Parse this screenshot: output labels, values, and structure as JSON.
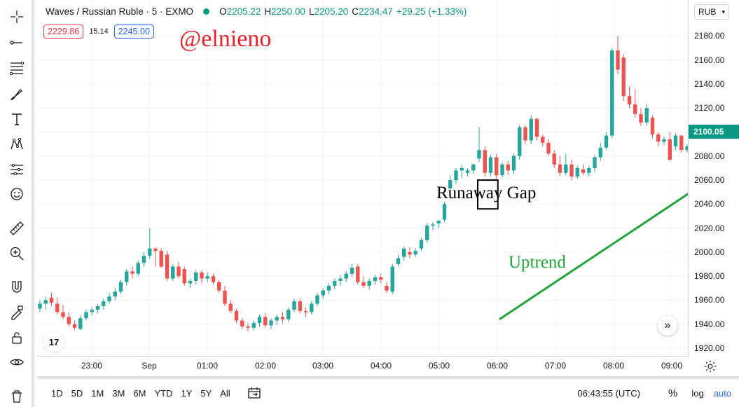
{
  "legend": {
    "symbol": "Waves / Russian Ruble · 5 · EXMO",
    "o_label": "O",
    "o_value": "2205.22",
    "h_label": "H",
    "h_value": "2250.00",
    "l_label": "L",
    "l_value": "2205.20",
    "c_label": "C",
    "c_value": "2234.47",
    "change": "+29.25 (+1.33%)"
  },
  "badges": {
    "sell": "2229.86",
    "spread": "15.14",
    "buy": "2245.00"
  },
  "watermark": "@elnieno",
  "annotations": {
    "gap_label": "Runaway Gap",
    "trend_label": "Uptrend"
  },
  "currency": "RUB",
  "last_price": "2100.05",
  "price_ticks": [
    "2180.00",
    "2160.00",
    "2140.00",
    "2120.00",
    "2100.00",
    "2080.00",
    "2060.00",
    "2040.00",
    "2020.00",
    "2000.00",
    "1980.00",
    "1960.00",
    "1940.00",
    "1920.00"
  ],
  "time_ticks": [
    "23:00",
    "Sep",
    "01:00",
    "02:00",
    "03:00",
    "04:00",
    "05:00",
    "06:00",
    "07:00",
    "08:00",
    "09:00"
  ],
  "ranges": [
    "1D",
    "5D",
    "1M",
    "3M",
    "6M",
    "YTD",
    "1Y",
    "5Y",
    "All"
  ],
  "clock": "06:43:55 (UTC)",
  "scale_pct": "%",
  "scale_log": "log",
  "scale_auto": "auto",
  "tv_logo": "17",
  "colors": {
    "up": "#26a69a",
    "down": "#ef5350",
    "trend": "#22a33a",
    "watermark": "#e8202a"
  },
  "chart_data": {
    "type": "candlestick",
    "ylim": [
      1913,
      2210
    ],
    "candles": [
      {
        "o": 1953,
        "h": 1960,
        "l": 1950,
        "c": 1957
      },
      {
        "o": 1957,
        "h": 1963,
        "l": 1952,
        "c": 1960
      },
      {
        "o": 1962,
        "h": 1966,
        "l": 1955,
        "c": 1958
      },
      {
        "o": 1957,
        "h": 1962,
        "l": 1948,
        "c": 1950
      },
      {
        "o": 1950,
        "h": 1956,
        "l": 1944,
        "c": 1946
      },
      {
        "o": 1946,
        "h": 1950,
        "l": 1938,
        "c": 1940
      },
      {
        "o": 1940,
        "h": 1943,
        "l": 1935,
        "c": 1937
      },
      {
        "o": 1936,
        "h": 1947,
        "l": 1935,
        "c": 1945
      },
      {
        "o": 1945,
        "h": 1952,
        "l": 1943,
        "c": 1950
      },
      {
        "o": 1950,
        "h": 1954,
        "l": 1947,
        "c": 1952
      },
      {
        "o": 1952,
        "h": 1957,
        "l": 1949,
        "c": 1955
      },
      {
        "o": 1955,
        "h": 1961,
        "l": 1952,
        "c": 1959
      },
      {
        "o": 1959,
        "h": 1966,
        "l": 1957,
        "c": 1963
      },
      {
        "o": 1963,
        "h": 1970,
        "l": 1960,
        "c": 1967
      },
      {
        "o": 1967,
        "h": 1977,
        "l": 1965,
        "c": 1975
      },
      {
        "o": 1975,
        "h": 1986,
        "l": 1972,
        "c": 1984
      },
      {
        "o": 1984,
        "h": 1988,
        "l": 1978,
        "c": 1982
      },
      {
        "o": 1982,
        "h": 1993,
        "l": 1980,
        "c": 1991
      },
      {
        "o": 1991,
        "h": 2000,
        "l": 1988,
        "c": 1997
      },
      {
        "o": 1997,
        "h": 2020,
        "l": 1994,
        "c": 2003
      },
      {
        "o": 2003,
        "h": 2004,
        "l": 1988,
        "c": 2001
      },
      {
        "o": 2001,
        "h": 2003,
        "l": 1987,
        "c": 1988
      },
      {
        "o": 1998,
        "h": 2001,
        "l": 1976,
        "c": 1978
      },
      {
        "o": 1978,
        "h": 1990,
        "l": 1976,
        "c": 1988
      },
      {
        "o": 1988,
        "h": 1992,
        "l": 1978,
        "c": 1980
      },
      {
        "o": 1986,
        "h": 1988,
        "l": 1972,
        "c": 1974
      },
      {
        "o": 1974,
        "h": 1978,
        "l": 1970,
        "c": 1976
      },
      {
        "o": 1976,
        "h": 1985,
        "l": 1973,
        "c": 1983
      },
      {
        "o": 1983,
        "h": 1985,
        "l": 1974,
        "c": 1978
      },
      {
        "o": 1978,
        "h": 1983,
        "l": 1975,
        "c": 1980
      },
      {
        "o": 1980,
        "h": 1982,
        "l": 1973,
        "c": 1975
      },
      {
        "o": 1975,
        "h": 1977,
        "l": 1966,
        "c": 1968
      },
      {
        "o": 1968,
        "h": 1972,
        "l": 1955,
        "c": 1957
      },
      {
        "o": 1957,
        "h": 1960,
        "l": 1949,
        "c": 1951
      },
      {
        "o": 1951,
        "h": 1953,
        "l": 1941,
        "c": 1943
      },
      {
        "o": 1943,
        "h": 1945,
        "l": 1936,
        "c": 1938
      },
      {
        "o": 1938,
        "h": 1941,
        "l": 1934,
        "c": 1937
      },
      {
        "o": 1937,
        "h": 1943,
        "l": 1935,
        "c": 1941
      },
      {
        "o": 1941,
        "h": 1948,
        "l": 1938,
        "c": 1946
      },
      {
        "o": 1946,
        "h": 1949,
        "l": 1937,
        "c": 1939
      },
      {
        "o": 1939,
        "h": 1945,
        "l": 1936,
        "c": 1943
      },
      {
        "o": 1943,
        "h": 1948,
        "l": 1939,
        "c": 1946
      },
      {
        "o": 1946,
        "h": 1950,
        "l": 1941,
        "c": 1944
      },
      {
        "o": 1944,
        "h": 1954,
        "l": 1942,
        "c": 1952
      },
      {
        "o": 1952,
        "h": 1961,
        "l": 1950,
        "c": 1959
      },
      {
        "o": 1959,
        "h": 1961,
        "l": 1949,
        "c": 1951
      },
      {
        "o": 1951,
        "h": 1954,
        "l": 1946,
        "c": 1950
      },
      {
        "o": 1950,
        "h": 1959,
        "l": 1948,
        "c": 1957
      },
      {
        "o": 1957,
        "h": 1966,
        "l": 1955,
        "c": 1964
      },
      {
        "o": 1964,
        "h": 1970,
        "l": 1961,
        "c": 1968
      },
      {
        "o": 1968,
        "h": 1974,
        "l": 1965,
        "c": 1972
      },
      {
        "o": 1972,
        "h": 1978,
        "l": 1969,
        "c": 1976
      },
      {
        "o": 1976,
        "h": 1981,
        "l": 1972,
        "c": 1978
      },
      {
        "o": 1978,
        "h": 1984,
        "l": 1975,
        "c": 1982
      },
      {
        "o": 1982,
        "h": 1990,
        "l": 1979,
        "c": 1987
      },
      {
        "o": 1988,
        "h": 1990,
        "l": 1973,
        "c": 1975
      },
      {
        "o": 1975,
        "h": 1980,
        "l": 1970,
        "c": 1972
      },
      {
        "o": 1972,
        "h": 1978,
        "l": 1969,
        "c": 1976
      },
      {
        "o": 1976,
        "h": 1981,
        "l": 1973,
        "c": 1979
      },
      {
        "o": 1979,
        "h": 1982,
        "l": 1974,
        "c": 1977
      },
      {
        "o": 1972,
        "h": 1975,
        "l": 1966,
        "c": 1968
      },
      {
        "o": 1967,
        "h": 1990,
        "l": 1965,
        "c": 1988
      },
      {
        "o": 1990,
        "h": 1998,
        "l": 1988,
        "c": 1995
      },
      {
        "o": 1996,
        "h": 2005,
        "l": 1993,
        "c": 2003
      },
      {
        "o": 2000,
        "h": 2004,
        "l": 1995,
        "c": 1998
      },
      {
        "o": 1998,
        "h": 2003,
        "l": 1996,
        "c": 2001
      },
      {
        "o": 2003,
        "h": 2012,
        "l": 2001,
        "c": 2010
      },
      {
        "o": 2010,
        "h": 2024,
        "l": 2008,
        "c": 2022
      },
      {
        "o": 2022,
        "h": 2025,
        "l": 2018,
        "c": 2023
      },
      {
        "o": 2024,
        "h": 2027,
        "l": 2020,
        "c": 2026
      },
      {
        "o": 2027,
        "h": 2042,
        "l": 2025,
        "c": 2040
      },
      {
        "o": 2053,
        "h": 2064,
        "l": 2050,
        "c": 2060
      },
      {
        "o": 2060,
        "h": 2070,
        "l": 2057,
        "c": 2068
      },
      {
        "o": 2068,
        "h": 2073,
        "l": 2062,
        "c": 2070
      },
      {
        "o": 2066,
        "h": 2070,
        "l": 2063,
        "c": 2068
      },
      {
        "o": 2068,
        "h": 2074,
        "l": 2065,
        "c": 2073
      },
      {
        "o": 2078,
        "h": 2104,
        "l": 2075,
        "c": 2085
      },
      {
        "o": 2085,
        "h": 2088,
        "l": 2063,
        "c": 2066
      },
      {
        "o": 2066,
        "h": 2081,
        "l": 2063,
        "c": 2079
      },
      {
        "o": 2079,
        "h": 2082,
        "l": 2061,
        "c": 2064
      },
      {
        "o": 2064,
        "h": 2075,
        "l": 2062,
        "c": 2073
      },
      {
        "o": 2073,
        "h": 2076,
        "l": 2064,
        "c": 2068
      },
      {
        "o": 2068,
        "h": 2082,
        "l": 2065,
        "c": 2080
      },
      {
        "o": 2080,
        "h": 2106,
        "l": 2077,
        "c": 2104
      },
      {
        "o": 2104,
        "h": 2106,
        "l": 2090,
        "c": 2093
      },
      {
        "o": 2093,
        "h": 2114,
        "l": 2090,
        "c": 2111
      },
      {
        "o": 2111,
        "h": 2112,
        "l": 2093,
        "c": 2096
      },
      {
        "o": 2096,
        "h": 2098,
        "l": 2088,
        "c": 2091
      },
      {
        "o": 2091,
        "h": 2094,
        "l": 2080,
        "c": 2082
      },
      {
        "o": 2082,
        "h": 2085,
        "l": 2070,
        "c": 2073
      },
      {
        "o": 2073,
        "h": 2080,
        "l": 2063,
        "c": 2066
      },
      {
        "o": 2066,
        "h": 2082,
        "l": 2064,
        "c": 2073
      },
      {
        "o": 2073,
        "h": 2077,
        "l": 2060,
        "c": 2063
      },
      {
        "o": 2063,
        "h": 2072,
        "l": 2061,
        "c": 2070
      },
      {
        "o": 2069,
        "h": 2073,
        "l": 2064,
        "c": 2066
      },
      {
        "o": 2066,
        "h": 2072,
        "l": 2063,
        "c": 2070
      },
      {
        "o": 2070,
        "h": 2081,
        "l": 2067,
        "c": 2079
      },
      {
        "o": 2079,
        "h": 2091,
        "l": 2076,
        "c": 2087
      },
      {
        "o": 2087,
        "h": 2100,
        "l": 2085,
        "c": 2097
      },
      {
        "o": 2097,
        "h": 2170,
        "l": 2095,
        "c": 2168
      },
      {
        "o": 2168,
        "h": 2180,
        "l": 2148,
        "c": 2152
      },
      {
        "o": 2162,
        "h": 2165,
        "l": 2126,
        "c": 2130
      },
      {
        "o": 2130,
        "h": 2138,
        "l": 2120,
        "c": 2123
      },
      {
        "o": 2123,
        "h": 2136,
        "l": 2112,
        "c": 2115
      },
      {
        "o": 2115,
        "h": 2120,
        "l": 2105,
        "c": 2108
      },
      {
        "o": 2108,
        "h": 2123,
        "l": 2105,
        "c": 2120
      },
      {
        "o": 2112,
        "h": 2114,
        "l": 2095,
        "c": 2098
      },
      {
        "o": 2098,
        "h": 2100,
        "l": 2088,
        "c": 2092
      },
      {
        "o": 2092,
        "h": 2096,
        "l": 2089,
        "c": 2094
      },
      {
        "o": 2094,
        "h": 2100,
        "l": 2076,
        "c": 2077
      },
      {
        "o": 2088,
        "h": 2099,
        "l": 2085,
        "c": 2097
      },
      {
        "o": 2097,
        "h": 2098,
        "l": 2083,
        "c": 2085
      },
      {
        "o": 2085,
        "h": 2090,
        "l": 2083,
        "c": 2088
      },
      {
        "o": 2088,
        "h": 2091,
        "l": 2084,
        "c": 2085
      },
      {
        "o": 2085,
        "h": 2095,
        "l": 2083,
        "c": 2093
      },
      {
        "o": 2093,
        "h": 2099,
        "l": 2090,
        "c": 2097
      },
      {
        "o": 2097,
        "h": 2102,
        "l": 2095,
        "c": 2100
      }
    ],
    "runaway_gap_box": {
      "x_index": [
        76,
        79
      ],
      "y": [
        2036,
        2060
      ]
    },
    "uptrend_line": {
      "from": {
        "x_index": 79.5,
        "y": 1944
      },
      "to": {
        "x_index": 117,
        "y": 2064
      }
    }
  }
}
